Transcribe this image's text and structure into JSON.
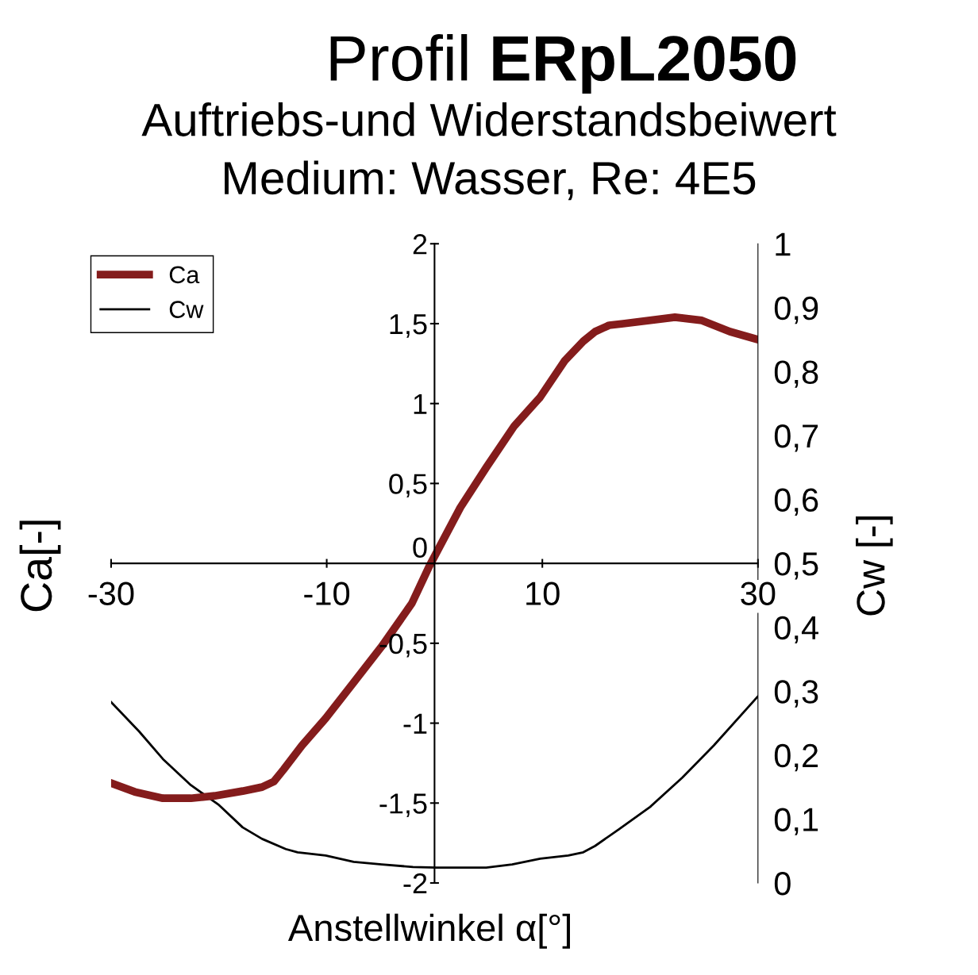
{
  "chart_data": {
    "type": "line",
    "title": "Profil ERpL2050",
    "subtitle": "Auftriebs-und Widerstandsbeiwert\nMedium: Wasser, Re: 4E5",
    "xlabel": "Anstellwinkel α[°]",
    "ylabel": "Ca[-]",
    "y2label": "Cw [-]",
    "xlim": [
      -30,
      30
    ],
    "xticks": [
      -30,
      -10,
      10,
      30
    ],
    "ylim": [
      -2,
      2
    ],
    "yticks": [
      -2,
      {
        "value": -1.5,
        "label": "-1,5"
      },
      -1,
      {
        "value": -0.5,
        "label": "-0,5"
      },
      0,
      {
        "value": 0.5,
        "label": "0,5"
      },
      1,
      {
        "value": 1.5,
        "label": "1,5"
      },
      2
    ],
    "y2lim": [
      0,
      1
    ],
    "y2ticks": [
      0,
      {
        "value": 0.1,
        "label": "0,1"
      },
      {
        "value": 0.2,
        "label": "0,2"
      },
      {
        "value": 0.3,
        "label": "0,3"
      },
      {
        "value": 0.4,
        "label": "0,4"
      },
      {
        "value": 0.5,
        "label": "0,5"
      },
      {
        "value": 0.6,
        "label": "0,6"
      },
      {
        "value": 0.7,
        "label": "0,7"
      },
      {
        "value": 0.8,
        "label": "0,8"
      },
      {
        "value": 0.9,
        "label": "0,9"
      },
      1
    ],
    "grid": false,
    "legend": "top left",
    "marker": "none",
    "series": [
      {
        "name": "Ca",
        "color": "#841c1c",
        "x": [
          -30,
          -27.8,
          -25.2,
          -22.6,
          -20.4,
          -17.8,
          -16,
          -14.9,
          -14,
          -12.3,
          -10.1,
          -7.5,
          -4.9,
          -2.1,
          -0.5,
          2.4,
          4.8,
          7.4,
          9.8,
          12.1,
          13.8,
          14.9,
          16.2,
          17.5,
          22.3,
          24.8,
          27.4,
          30
        ],
        "values": [
          -1.375,
          -1.43,
          -1.47,
          -1.47,
          -1.455,
          -1.425,
          -1.4,
          -1.365,
          -1.29,
          -1.14,
          -0.97,
          -0.745,
          -0.52,
          -0.25,
          -0.02,
          0.35,
          0.6,
          0.86,
          1.04,
          1.27,
          1.39,
          1.45,
          1.49,
          1.5,
          1.54,
          1.52,
          1.45,
          1.4
        ]
      },
      {
        "name": "Cw",
        "color": "#000000",
        "axis": "y2",
        "x": [
          -30,
          -27.4,
          -25.2,
          -22.6,
          -20,
          -17.8,
          -16,
          -13.8,
          -12.7,
          -10.1,
          -7.5,
          -4.9,
          -2,
          0.2,
          4.8,
          7.2,
          9.8,
          12.4,
          13.8,
          14.9,
          17.1,
          20,
          23,
          25.9,
          30
        ],
        "values": [
          0.283,
          0.237,
          0.194,
          0.153,
          0.122,
          0.087,
          0.069,
          0.053,
          0.048,
          0.043,
          0.033,
          0.029,
          0.025,
          0.024,
          0.024,
          0.029,
          0.038,
          0.043,
          0.048,
          0.058,
          0.084,
          0.119,
          0.165,
          0.215,
          0.292
        ]
      }
    ]
  }
}
